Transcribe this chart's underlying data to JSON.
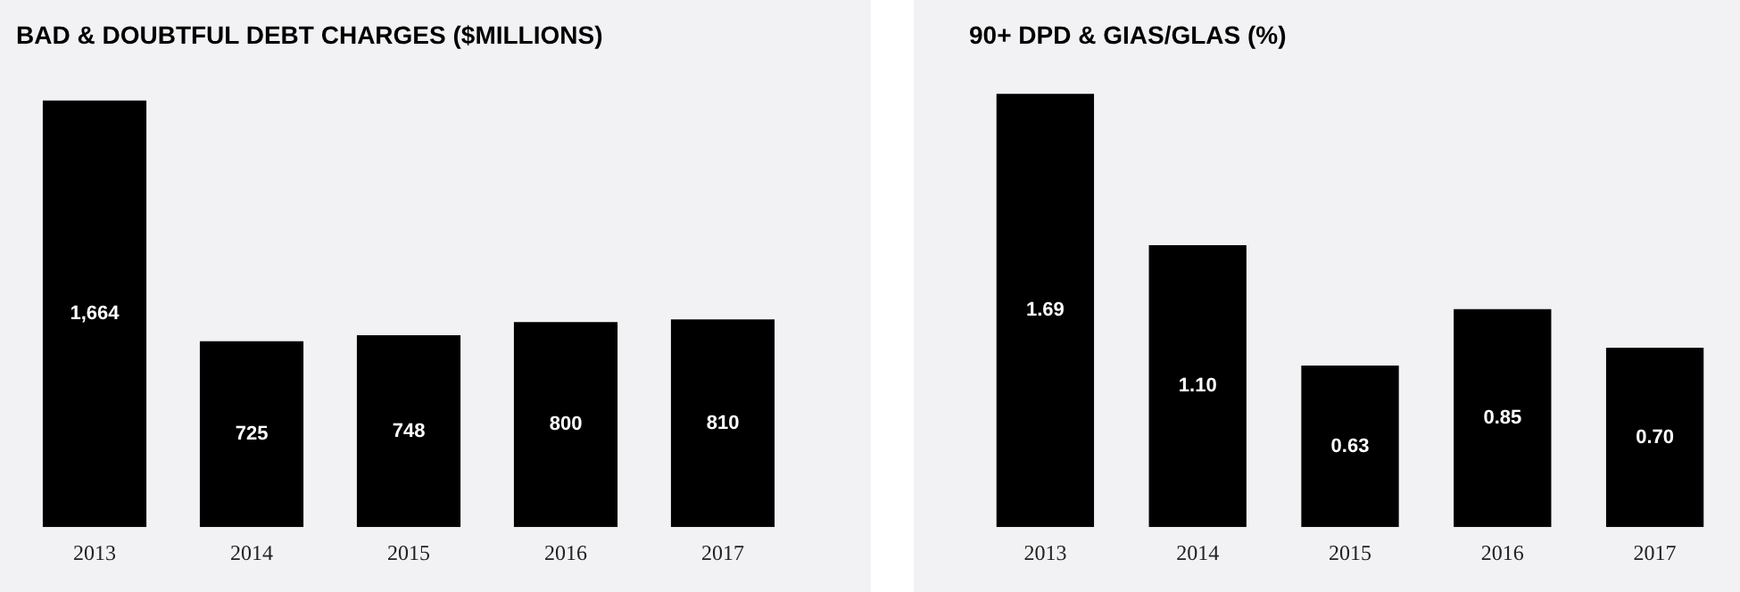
{
  "chart_data": [
    {
      "type": "bar",
      "title": "BAD & DOUBTFUL DEBT CHARGES ($MILLIONS)",
      "categories": [
        "2013",
        "2014",
        "2015",
        "2016",
        "2017"
      ],
      "values": [
        1664,
        725,
        748,
        800,
        810
      ],
      "value_labels": [
        "1,664",
        "725",
        "748",
        "800",
        "810"
      ],
      "color": "#000000",
      "grid": false,
      "legend": false
    },
    {
      "type": "bar",
      "title": "90+ DPD & GIAS/GLAS (%)",
      "categories": [
        "2013",
        "2014",
        "2015",
        "2016",
        "2017"
      ],
      "values": [
        1.69,
        1.1,
        0.63,
        0.85,
        0.7
      ],
      "value_labels": [
        "1.69",
        "1.10",
        "0.63",
        "0.85",
        "0.70"
      ],
      "color": "#000000",
      "grid": false,
      "legend": false
    }
  ]
}
